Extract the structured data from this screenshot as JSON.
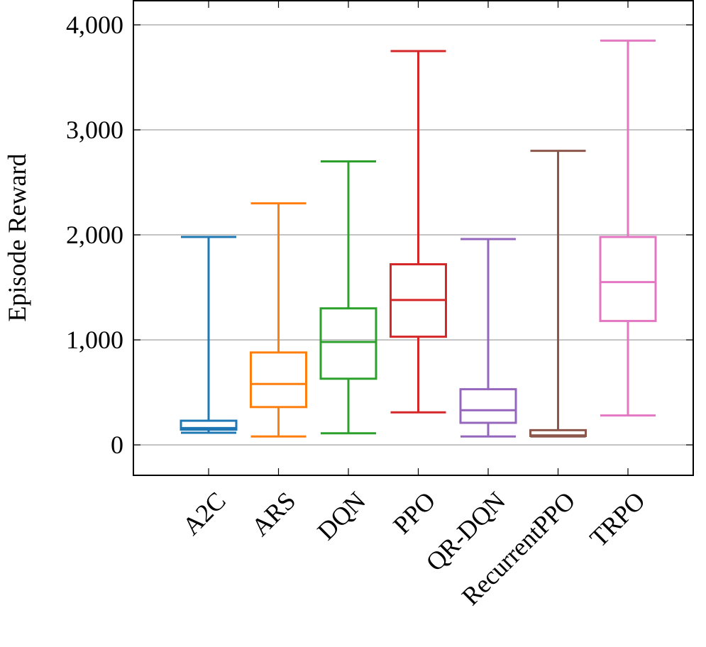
{
  "chart_data": {
    "type": "box",
    "y_label": "Episode Reward",
    "categories": [
      "A2C",
      "ARS",
      "DQN",
      "PPO",
      "QR-DQN",
      "RecurrentPPO",
      "TRPO"
    ],
    "colors": [
      "#1f77b4",
      "#ff7f0e",
      "#2ca02c",
      "#d62728",
      "#9467bd",
      "#8c564b",
      "#e377c2"
    ],
    "min": [
      115,
      80,
      110,
      310,
      80,
      80,
      280
    ],
    "q1": [
      145,
      360,
      630,
      1030,
      210,
      85,
      1180
    ],
    "median": [
      160,
      580,
      980,
      1380,
      330,
      90,
      1550
    ],
    "q3": [
      230,
      880,
      1300,
      1720,
      530,
      140,
      1980
    ],
    "max": [
      1980,
      2300,
      2700,
      3750,
      1960,
      2800,
      3850
    ],
    "ylim": [
      -290,
      4230
    ],
    "yticks": [
      0,
      {
        "value": 1000,
        "label": "1,000"
      },
      {
        "value": 2000,
        "label": "2,000"
      },
      {
        "value": 3000,
        "label": "3,000"
      },
      {
        "value": 4000,
        "label": "4,000"
      }
    ],
    "grid": true
  }
}
